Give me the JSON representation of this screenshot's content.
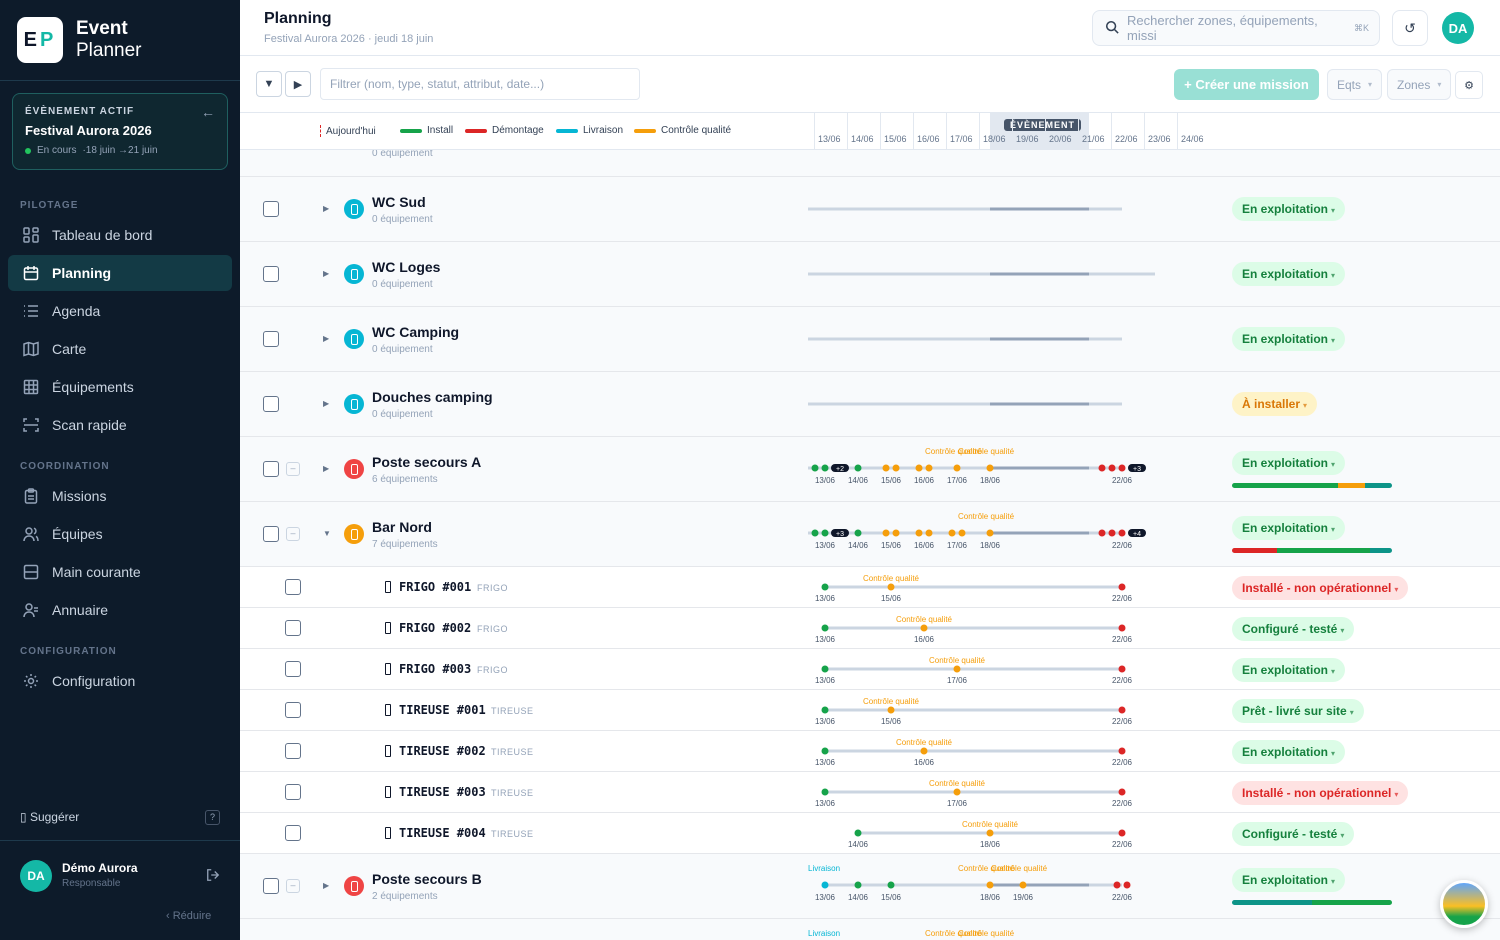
{
  "sidebar": {
    "logo_letters": {
      "e": "E",
      "p": "P"
    },
    "brand_line1": "Event",
    "brand_line2": "Planner",
    "event_box": {
      "label": "ÉVÈNEMENT ACTIF",
      "name": "Festival Aurora 2026",
      "status": "En cours",
      "dates": "·18 juin →21 juin"
    },
    "sections": {
      "pilotage": "PILOTAGE",
      "coordination": "COORDINATION",
      "configuration": "CONFIGURATION"
    },
    "nav": [
      {
        "label": "Tableau de bord",
        "icon": "dashboard-icon"
      },
      {
        "label": "Planning",
        "icon": "calendar-icon",
        "active": true
      },
      {
        "label": "Agenda",
        "icon": "list-icon"
      },
      {
        "label": "Carte",
        "icon": "map-icon"
      },
      {
        "label": "Équipements",
        "icon": "grid-icon"
      },
      {
        "label": "Scan rapide",
        "icon": "scan-icon"
      },
      {
        "label": "Missions",
        "icon": "clipboard-icon"
      },
      {
        "label": "Équipes",
        "icon": "users-icon"
      },
      {
        "label": "Main courante",
        "icon": "logbook-icon"
      },
      {
        "label": "Annuaire",
        "icon": "contacts-icon"
      },
      {
        "label": "Configuration",
        "icon": "gear-icon"
      }
    ],
    "suggest": "Suggérer",
    "help": "?",
    "user": {
      "initials": "DA",
      "name": "Démo Aurora",
      "role": "Responsable"
    },
    "reduce": "‹  Réduire"
  },
  "header": {
    "title": "Planning",
    "subtitle": "Festival Aurora 2026 · jeudi 18 juin",
    "search_placeholder": "Rechercher zones, équipements, missi",
    "search_shortcut": "⌘K",
    "refresh": "↺",
    "avatar": "DA"
  },
  "toolbar": {
    "filter_placeholder": "Filtrer (nom, type, statut, attribut, date...)",
    "collapse": "▼",
    "expand": "▶",
    "create_mission": "+ Créer une mission",
    "eqts": "Eqts",
    "zones": "Zones",
    "settings": "⚙"
  },
  "legend": {
    "today": "Aujourd'hui",
    "items": [
      {
        "label": "Install",
        "color": "#16a34a"
      },
      {
        "label": "Démontage",
        "color": "#dc2626"
      },
      {
        "label": "Livraison",
        "color": "#06b6d4"
      },
      {
        "label": "Contrôle qualité",
        "color": "#f59e0b"
      }
    ],
    "event_label": "ÉVÈNEMENT",
    "dates": [
      "13/06",
      "14/06",
      "15/06",
      "16/06",
      "17/06",
      "18/06",
      "19/06",
      "20/06",
      "21/06",
      "22/06",
      "23/06",
      "24/06"
    ]
  },
  "colors": {
    "install": "#16a34a",
    "demontage": "#dc2626",
    "livraison": "#06b6d4",
    "controle": "#f59e0b",
    "accent": "#14b8a6"
  },
  "zones": [
    {
      "sub": "0 équipement"
    },
    {
      "name": "WC Sud",
      "sub": "0 équipement",
      "status": "En exploitation"
    },
    {
      "name": "WC Loges",
      "sub": "0 équipement",
      "status": "En exploitation"
    },
    {
      "name": "WC Camping",
      "sub": "0 équipement",
      "status": "En exploitation"
    },
    {
      "name": "Douches camping",
      "sub": "0 équipement",
      "status": "À installer"
    },
    {
      "name": "Poste secours A",
      "sub": "6 équipements",
      "status": "En exploitation",
      "more_left": "+2",
      "more_right": "+3",
      "cq": "Contrôle qualité",
      "cq2": "Contrôle qualité"
    },
    {
      "name": "Bar Nord",
      "sub": "7 équipements",
      "status": "En exploitation",
      "more_left": "+3",
      "more_right": "+4",
      "cq": "Contrôle qualité"
    },
    {
      "name": "Poste secours B",
      "sub": "2 équipements",
      "status": "En exploitation",
      "livraison": "Livraison",
      "cq": "Contrôle qualité",
      "cq2": "Contrôle qualité"
    },
    {
      "livraison": "Livraison",
      "cq": "Contrôle qualité",
      "cq2": "Contrôle qualité"
    }
  ],
  "equipment": [
    {
      "name": "FRIGO #001",
      "type": "FRIGO",
      "status": "Installé - non opérationnel",
      "cq_label": "Contrôle qualité",
      "cq_date": "15/06"
    },
    {
      "name": "FRIGO #002",
      "type": "FRIGO",
      "status": "Configuré - testé",
      "cq_label": "Contrôle qualité",
      "cq_date": "16/06"
    },
    {
      "name": "FRIGO #003",
      "type": "FRIGO",
      "status": "En exploitation",
      "cq_label": "Contrôle qualité",
      "cq_date": "17/06"
    },
    {
      "name": "TIREUSE #001",
      "type": "TIREUSE",
      "status": "Prêt - livré sur site",
      "cq_label": "Contrôle qualité",
      "cq_date": "15/06"
    },
    {
      "name": "TIREUSE #002",
      "type": "TIREUSE",
      "status": "En exploitation",
      "cq_label": "Contrôle qualité",
      "cq_date": "16/06"
    },
    {
      "name": "TIREUSE #003",
      "type": "TIREUSE",
      "status": "Installé - non opérationnel",
      "cq_label": "Contrôle qualité",
      "cq_date": "17/06"
    },
    {
      "name": "TIREUSE #004",
      "type": "TIREUSE",
      "status": "Configuré - testé",
      "cq_label": "Contrôle qualité",
      "cq_date": "18/06",
      "start": "14/06"
    }
  ],
  "timeline_dates": {
    "d13": "13/06",
    "d14": "14/06",
    "d15": "15/06",
    "d16": "16/06",
    "d17": "17/06",
    "d18": "18/06",
    "d19": "19/06",
    "d22": "22/06"
  }
}
